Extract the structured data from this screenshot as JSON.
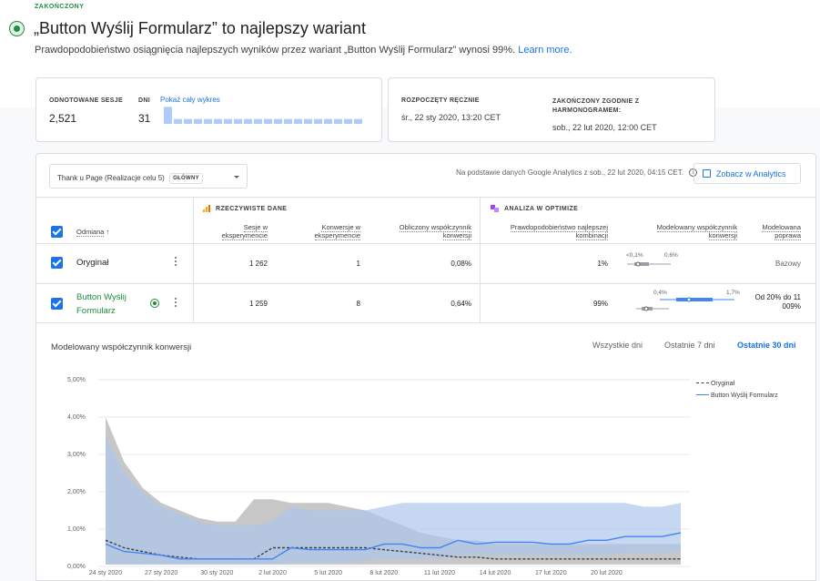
{
  "status_label": "ZAKOŃCZONY",
  "title": "„Button Wyślij Formularz” to najlepszy wariant",
  "subtitle_text": "Prawdopodobieństwo osiągnięcia najlepszych wyników przez wariant „Button Wyślij Formularz” wynosi 99%.",
  "learn_more": "Learn more.",
  "stats": {
    "sessions_label": "ODNOTOWANE SESJE",
    "sessions_value": "2,521",
    "days_label": "DNI",
    "days_value": "31",
    "show_chart_link": "Pokaż cały wykres",
    "started_label": "ROZPOCZĘTY RĘCZNIE",
    "started_value": "śr., 22 sty 2020, 13:20 CET",
    "ended_label": "ZAKOŃCZONY ZGODNIE Z HARMONOGRAMEM:",
    "ended_value": "sob., 22 lut 2020, 12:00 CET",
    "spark_values": [
      0.28,
      0.08,
      0.08,
      0.08,
      0.08,
      0.08,
      0.08,
      0.08,
      0.08,
      0.08,
      0.08,
      0.08,
      0.08,
      0.08,
      0.08,
      0.08,
      0.08,
      0.08,
      0.08,
      0.08
    ]
  },
  "goal": {
    "name": "Thank u Page (Realizacje celu 5)",
    "badge": "GŁÓWNY",
    "ga_note": "Na podstawie danych Google Analytics z sob., 22 lut 2020, 04:15 CET.",
    "analytics_button": "Zobacz w Analytics"
  },
  "table": {
    "real_data_label": "RZECZYWISTE DANE",
    "optimize_label": "ANALIZA W OPTIMIZE",
    "col_variant": "Odmiana",
    "col_sessions": [
      "Sesje w",
      "eksperymencie"
    ],
    "col_conversions": [
      "Konwersje w",
      "eksperymencie"
    ],
    "col_rate": [
      "Obliczony współczynnik",
      "konwersji"
    ],
    "col_prob": [
      "Prawdopodobieństwo najlepszej",
      "kombinacji"
    ],
    "col_modeled": [
      "Modelowany współczynnik",
      "konwersji"
    ],
    "col_improvement": [
      "Modelowana",
      "poprawa"
    ],
    "rows": [
      {
        "name": "Oryginał",
        "sessions": "1 262",
        "conversions": "1",
        "rate": "0,08%",
        "prob": "1%",
        "range_low": "<0,1%",
        "range_high": "0,6%",
        "improvement": "Bazowy"
      },
      {
        "name": "Button Wyślij Formularz",
        "sessions": "1 259",
        "conversions": "8",
        "rate": "0,64%",
        "prob": "99%",
        "range_low": "0,4%",
        "range_high": "1,7%",
        "improvement": "Od 20% do 11 009%"
      }
    ]
  },
  "chart_tabs": {
    "all_days": "Wszystkie dni",
    "last_7": "Ostatnie 7 dni",
    "last_30": "Ostatnie 30 dni"
  },
  "chart_data": {
    "type": "line",
    "title": "Modelowany współczynnik konwersji",
    "ylim": [
      0,
      5
    ],
    "yticks": [
      "0,00%",
      "1,00%",
      "2,00%",
      "3,00%",
      "4,00%",
      "5,00%"
    ],
    "xticks": [
      "24 sty 2020",
      "27 sty 2020",
      "30 sty 2020",
      "2 lut 2020",
      "5 lut 2020",
      "8 lut 2020",
      "11 lut 2020",
      "14 lut 2020",
      "17 lut 2020",
      "20 lut 2020"
    ],
    "legend_position": "top-right",
    "series": [
      {
        "name": "Oryginał",
        "color": "#3c4043",
        "style": "dashed",
        "values": [
          0.7,
          0.5,
          0.4,
          0.3,
          0.25,
          0.2,
          0.2,
          0.2,
          0.2,
          0.5,
          0.5,
          0.5,
          0.5,
          0.5,
          0.5,
          0.45,
          0.4,
          0.35,
          0.3,
          0.25,
          0.25,
          0.2,
          0.2,
          0.2,
          0.2,
          0.2,
          0.2,
          0.2,
          0.2,
          0.2,
          0.2,
          0.2
        ],
        "upper": [
          4.0,
          2.8,
          2.1,
          1.7,
          1.5,
          1.3,
          1.2,
          1.2,
          1.8,
          1.8,
          1.7,
          1.7,
          1.7,
          1.6,
          1.5,
          1.3,
          1.1,
          0.9,
          0.8,
          0.7,
          0.7,
          0.6,
          0.6,
          0.6,
          0.6,
          0.6,
          0.6,
          0.6,
          0.6,
          0.6,
          0.6,
          0.6
        ],
        "lower": [
          0.05,
          0.05,
          0.05,
          0.05,
          0.05,
          0.05,
          0.05,
          0.05,
          0.05,
          0.05,
          0.05,
          0.05,
          0.05,
          0.05,
          0.05,
          0.05,
          0.05,
          0.05,
          0.05,
          0.05,
          0.05,
          0.05,
          0.05,
          0.05,
          0.05,
          0.05,
          0.05,
          0.05,
          0.05,
          0.05,
          0.05,
          0.05
        ]
      },
      {
        "name": "Button Wyślij Formularz",
        "color": "#4285f4",
        "style": "solid",
        "values": [
          0.6,
          0.4,
          0.35,
          0.3,
          0.2,
          0.2,
          0.2,
          0.2,
          0.2,
          0.2,
          0.5,
          0.45,
          0.45,
          0.45,
          0.45,
          0.6,
          0.6,
          0.5,
          0.5,
          0.7,
          0.6,
          0.65,
          0.65,
          0.65,
          0.6,
          0.6,
          0.7,
          0.7,
          0.8,
          0.8,
          0.8,
          0.9
        ],
        "upper": [
          3.5,
          2.5,
          2.0,
          1.6,
          1.4,
          1.2,
          1.1,
          1.1,
          1.1,
          1.2,
          1.6,
          1.5,
          1.5,
          1.5,
          1.5,
          1.6,
          1.7,
          1.7,
          1.7,
          1.7,
          1.7,
          1.7,
          1.7,
          1.7,
          1.7,
          1.7,
          1.7,
          1.7,
          1.7,
          1.6,
          1.6,
          1.7
        ],
        "lower": [
          0.05,
          0.05,
          0.05,
          0.05,
          0.05,
          0.05,
          0.05,
          0.05,
          0.05,
          0.05,
          0.1,
          0.1,
          0.1,
          0.1,
          0.15,
          0.2,
          0.2,
          0.2,
          0.2,
          0.3,
          0.3,
          0.3,
          0.3,
          0.3,
          0.3,
          0.3,
          0.3,
          0.3,
          0.35,
          0.35,
          0.35,
          0.4
        ]
      }
    ]
  }
}
